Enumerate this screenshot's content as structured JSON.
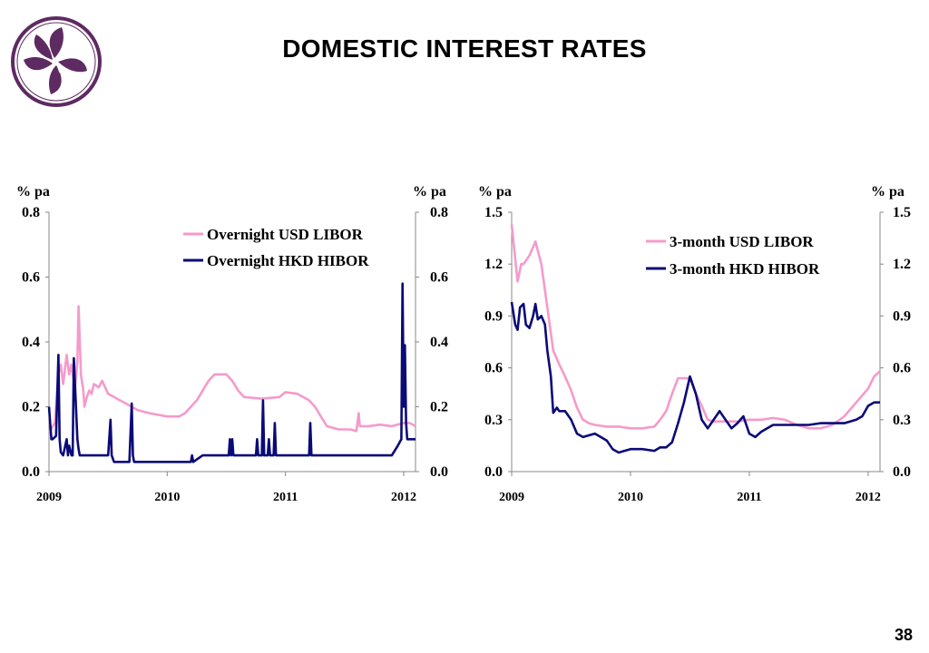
{
  "header": {
    "title": "DOMESTIC INTEREST RATES"
  },
  "footer": {
    "page_number": "38"
  },
  "colors": {
    "pink": "#F59ACB",
    "navy": "#0A0A78",
    "logo_purple": "#5E2A62"
  },
  "chart_data": [
    {
      "type": "line",
      "title": "",
      "ylabel_left": "% pa",
      "ylabel_right": "% pa",
      "ylim": [
        0,
        0.8
      ],
      "yticks": [
        0.0,
        0.2,
        0.4,
        0.6,
        0.8
      ],
      "ytick_labels": [
        "0.0",
        "0.2",
        "0.4",
        "0.6",
        "0.8"
      ],
      "xlim": [
        2009.0,
        2012.1
      ],
      "xticks": [
        2009,
        2010,
        2011,
        2012
      ],
      "xtick_labels": [
        "2009",
        "2010",
        "2011",
        "2012"
      ],
      "legend_position": "top-right",
      "series": [
        {
          "name": "Overnight USD LIBOR",
          "color": "#F59ACB",
          "x": [
            2009.0,
            2009.05,
            2009.08,
            2009.1,
            2009.12,
            2009.15,
            2009.17,
            2009.19,
            2009.2,
            2009.22,
            2009.24,
            2009.25,
            2009.27,
            2009.29,
            2009.3,
            2009.32,
            2009.34,
            2009.36,
            2009.38,
            2009.42,
            2009.45,
            2009.5,
            2009.55,
            2009.6,
            2009.65,
            2009.7,
            2009.75,
            2009.85,
            2010.0,
            2010.1,
            2010.15,
            2010.2,
            2010.25,
            2010.3,
            2010.35,
            2010.4,
            2010.45,
            2010.5,
            2010.55,
            2010.6,
            2010.65,
            2010.8,
            2010.95,
            2011.0,
            2011.1,
            2011.2,
            2011.25,
            2011.3,
            2011.35,
            2011.45,
            2011.55,
            2011.6,
            2011.62,
            2011.63,
            2011.7,
            2011.8,
            2011.9,
            2012.0,
            2012.05,
            2012.1
          ],
          "values": [
            0.12,
            0.15,
            0.3,
            0.33,
            0.27,
            0.36,
            0.3,
            0.33,
            0.3,
            0.26,
            0.34,
            0.51,
            0.3,
            0.25,
            0.2,
            0.23,
            0.25,
            0.24,
            0.27,
            0.26,
            0.28,
            0.24,
            0.23,
            0.22,
            0.21,
            0.2,
            0.19,
            0.18,
            0.17,
            0.17,
            0.18,
            0.2,
            0.22,
            0.25,
            0.28,
            0.3,
            0.3,
            0.3,
            0.28,
            0.25,
            0.23,
            0.225,
            0.23,
            0.245,
            0.24,
            0.22,
            0.2,
            0.17,
            0.14,
            0.13,
            0.13,
            0.125,
            0.18,
            0.14,
            0.14,
            0.145,
            0.14,
            0.15,
            0.15,
            0.14
          ]
        },
        {
          "name": "Overnight HKD HIBOR",
          "color": "#0A0A78",
          "x": [
            2009.0,
            2009.02,
            2009.03,
            2009.06,
            2009.08,
            2009.09,
            2009.1,
            2009.12,
            2009.15,
            2009.16,
            2009.17,
            2009.19,
            2009.2,
            2009.21,
            2009.24,
            2009.25,
            2009.26,
            2009.29,
            2009.35,
            2009.5,
            2009.52,
            2009.53,
            2009.55,
            2009.56,
            2009.57,
            2009.6,
            2009.68,
            2009.7,
            2009.71,
            2009.72,
            2009.75,
            2009.85,
            2010.0,
            2010.2,
            2010.21,
            2010.22,
            2010.3,
            2010.45,
            2010.52,
            2010.53,
            2010.54,
            2010.55,
            2010.56,
            2010.6,
            2010.75,
            2010.76,
            2010.77,
            2010.8,
            2010.81,
            2010.82,
            2010.85,
            2010.86,
            2010.87,
            2010.9,
            2010.91,
            2010.92,
            2011.0,
            2011.2,
            2011.21,
            2011.22,
            2011.4,
            2011.6,
            2011.7,
            2011.8,
            2011.9,
            2011.95,
            2011.98,
            2011.99,
            2012.0,
            2012.01,
            2012.02,
            2012.03,
            2012.04,
            2012.1
          ],
          "values": [
            0.2,
            0.1,
            0.1,
            0.11,
            0.36,
            0.1,
            0.06,
            0.05,
            0.1,
            0.05,
            0.08,
            0.05,
            0.05,
            0.35,
            0.1,
            0.07,
            0.05,
            0.05,
            0.05,
            0.05,
            0.16,
            0.05,
            0.03,
            0.03,
            0.03,
            0.03,
            0.03,
            0.21,
            0.05,
            0.03,
            0.03,
            0.03,
            0.03,
            0.03,
            0.05,
            0.03,
            0.05,
            0.05,
            0.05,
            0.1,
            0.05,
            0.1,
            0.05,
            0.05,
            0.05,
            0.1,
            0.05,
            0.05,
            0.22,
            0.05,
            0.05,
            0.1,
            0.05,
            0.05,
            0.15,
            0.05,
            0.05,
            0.05,
            0.15,
            0.05,
            0.05,
            0.05,
            0.05,
            0.05,
            0.05,
            0.08,
            0.1,
            0.58,
            0.2,
            0.39,
            0.15,
            0.1,
            0.1,
            0.1
          ]
        }
      ]
    },
    {
      "type": "line",
      "title": "",
      "ylabel_left": "% pa",
      "ylabel_right": "% pa",
      "ylim": [
        0,
        1.5
      ],
      "yticks": [
        0.0,
        0.3,
        0.6,
        0.9,
        1.2,
        1.5
      ],
      "ytick_labels": [
        "0.0",
        "0.3",
        "0.6",
        "0.9",
        "1.2",
        "1.5"
      ],
      "xlim": [
        2009.0,
        2012.1
      ],
      "xticks": [
        2009,
        2010,
        2011,
        2012
      ],
      "xtick_labels": [
        "2009",
        "2010",
        "2011",
        "2012"
      ],
      "legend_position": "top-right",
      "series": [
        {
          "name": "3-month USD LIBOR",
          "color": "#F59ACB",
          "x": [
            2009.0,
            2009.02,
            2009.05,
            2009.08,
            2009.1,
            2009.15,
            2009.2,
            2009.25,
            2009.3,
            2009.35,
            2009.4,
            2009.45,
            2009.5,
            2009.55,
            2009.6,
            2009.65,
            2009.7,
            2009.8,
            2009.9,
            2010.0,
            2010.1,
            2010.2,
            2010.25,
            2010.3,
            2010.35,
            2010.4,
            2010.45,
            2010.5,
            2010.55,
            2010.6,
            2010.65,
            2010.7,
            2010.8,
            2010.9,
            2011.0,
            2011.1,
            2011.2,
            2011.3,
            2011.4,
            2011.5,
            2011.6,
            2011.7,
            2011.8,
            2011.9,
            2012.0,
            2012.05,
            2012.1
          ],
          "values": [
            1.43,
            1.3,
            1.1,
            1.2,
            1.2,
            1.25,
            1.33,
            1.2,
            0.95,
            0.7,
            0.62,
            0.55,
            0.47,
            0.37,
            0.3,
            0.28,
            0.27,
            0.26,
            0.26,
            0.25,
            0.25,
            0.26,
            0.3,
            0.35,
            0.45,
            0.54,
            0.54,
            0.54,
            0.45,
            0.38,
            0.3,
            0.29,
            0.29,
            0.29,
            0.3,
            0.3,
            0.31,
            0.3,
            0.27,
            0.25,
            0.25,
            0.27,
            0.32,
            0.4,
            0.48,
            0.55,
            0.58
          ]
        },
        {
          "name": "3-month HKD HIBOR",
          "color": "#0A0A78",
          "x": [
            2009.0,
            2009.03,
            2009.05,
            2009.07,
            2009.1,
            2009.12,
            2009.15,
            2009.18,
            2009.2,
            2009.22,
            2009.25,
            2009.28,
            2009.3,
            2009.33,
            2009.35,
            2009.38,
            2009.4,
            2009.45,
            2009.5,
            2009.55,
            2009.6,
            2009.65,
            2009.7,
            2009.75,
            2009.8,
            2009.85,
            2009.9,
            2009.95,
            2010.0,
            2010.1,
            2010.2,
            2010.25,
            2010.3,
            2010.35,
            2010.4,
            2010.45,
            2010.5,
            2010.55,
            2010.6,
            2010.65,
            2010.7,
            2010.75,
            2010.8,
            2010.85,
            2010.9,
            2010.95,
            2011.0,
            2011.05,
            2011.1,
            2011.2,
            2011.3,
            2011.4,
            2011.5,
            2011.6,
            2011.7,
            2011.8,
            2011.9,
            2011.95,
            2012.0,
            2012.05,
            2012.1
          ],
          "values": [
            0.98,
            0.85,
            0.82,
            0.95,
            0.97,
            0.85,
            0.83,
            0.9,
            0.97,
            0.88,
            0.9,
            0.85,
            0.7,
            0.55,
            0.34,
            0.37,
            0.35,
            0.35,
            0.3,
            0.22,
            0.2,
            0.21,
            0.22,
            0.2,
            0.18,
            0.13,
            0.11,
            0.12,
            0.13,
            0.13,
            0.12,
            0.14,
            0.14,
            0.17,
            0.28,
            0.4,
            0.55,
            0.45,
            0.3,
            0.25,
            0.3,
            0.35,
            0.3,
            0.25,
            0.28,
            0.32,
            0.22,
            0.2,
            0.23,
            0.27,
            0.27,
            0.27,
            0.27,
            0.28,
            0.28,
            0.28,
            0.3,
            0.32,
            0.38,
            0.4,
            0.4
          ]
        }
      ]
    }
  ]
}
